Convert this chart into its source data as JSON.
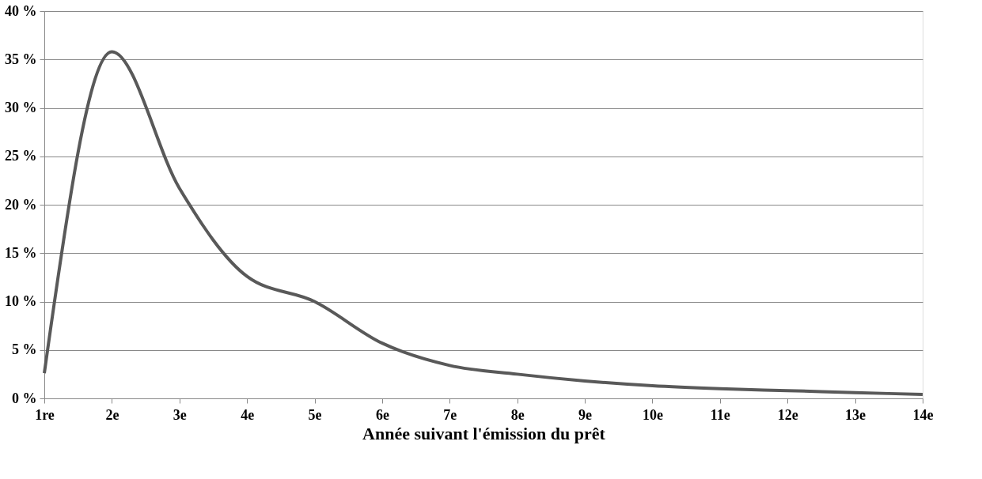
{
  "chart_data": {
    "type": "line",
    "xlabel": "Année suivant l'émission du prêt",
    "categories": [
      "1re",
      "2e",
      "3e",
      "4e",
      "5e",
      "6e",
      "7e",
      "8e",
      "9e",
      "10e",
      "11e",
      "12e",
      "13e",
      "14e"
    ],
    "series": [
      {
        "color": "#595959",
        "values": [
          2.6,
          35.8,
          21.7,
          12.6,
          10.0,
          5.7,
          3.4,
          2.5,
          1.8,
          1.3,
          1.0,
          0.8,
          0.6,
          0.4
        ]
      }
    ],
    "ylim": [
      0,
      40
    ],
    "yticks": [
      {
        "value": 0,
        "label": "0 %"
      },
      {
        "value": 5,
        "label": "5 %"
      },
      {
        "value": 10,
        "label": "10 %"
      },
      {
        "value": 15,
        "label": "15 %"
      },
      {
        "value": 20,
        "label": "20 %"
      },
      {
        "value": 25,
        "label": "25 %"
      },
      {
        "value": 30,
        "label": "30 %"
      },
      {
        "value": 35,
        "label": "35 %"
      },
      {
        "value": 40,
        "label": "40 %"
      }
    ],
    "grid": "y",
    "marker": "none",
    "line_style": "solid"
  }
}
